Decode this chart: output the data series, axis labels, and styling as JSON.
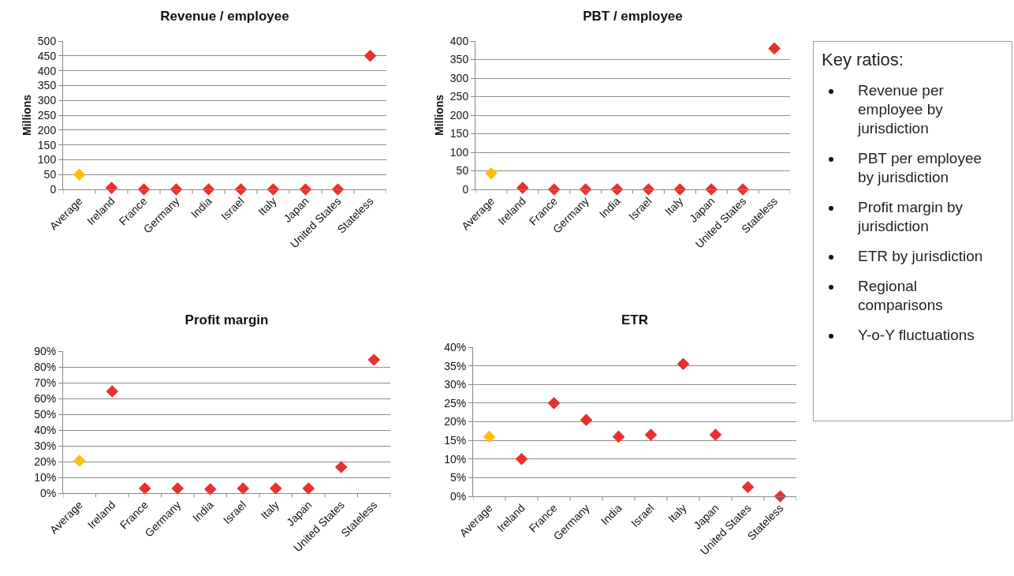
{
  "chart_data": [
    {
      "type": "scatter",
      "title": "Revenue / employee",
      "ylabel": "Millions",
      "categories": [
        "Average",
        "Ireland",
        "France",
        "Germany",
        "India",
        "Israel",
        "Italy",
        "Japan",
        "United States",
        "Stateless"
      ],
      "series": [
        {
          "colors": [
            "#ffc000",
            "#e8312f",
            "#e8312f",
            "#e8312f",
            "#e8312f",
            "#e8312f",
            "#e8312f",
            "#e8312f",
            "#e8312f",
            "#e8312f"
          ],
          "values": [
            50,
            5,
            0,
            0,
            0,
            0,
            0,
            0,
            0,
            450
          ]
        }
      ],
      "ylim": [
        0,
        500
      ],
      "yticks": [
        0,
        50,
        100,
        150,
        200,
        250,
        300,
        350,
        400,
        450,
        500
      ],
      "grid": "y",
      "marker": "diamond"
    },
    {
      "type": "scatter",
      "title": "PBT / employee",
      "ylabel": "Millions",
      "categories": [
        "Average",
        "Ireland",
        "France",
        "Germany",
        "India",
        "Israel",
        "Italy",
        "Japan",
        "United States",
        "Stateless"
      ],
      "series": [
        {
          "colors": [
            "#ffc000",
            "#e8312f",
            "#e8312f",
            "#e8312f",
            "#e8312f",
            "#e8312f",
            "#e8312f",
            "#e8312f",
            "#e8312f",
            "#e8312f"
          ],
          "values": [
            43,
            4,
            0,
            0,
            0,
            0,
            0,
            0,
            0,
            380
          ]
        }
      ],
      "ylim": [
        0,
        400
      ],
      "yticks": [
        0,
        50,
        100,
        150,
        200,
        250,
        300,
        350,
        400
      ],
      "grid": "y",
      "marker": "diamond"
    },
    {
      "type": "scatter",
      "title": "Profit margin",
      "categories": [
        "Average",
        "Ireland",
        "France",
        "Germany",
        "India",
        "Israel",
        "Italy",
        "Japan",
        "United States",
        "Stateless"
      ],
      "series": [
        {
          "colors": [
            "#ffc000",
            "#e8312f",
            "#e8312f",
            "#e8312f",
            "#e8312f",
            "#e8312f",
            "#e8312f",
            "#e8312f",
            "#e8312f",
            "#e8312f"
          ],
          "values": [
            20.5,
            64.5,
            3,
            3,
            2.5,
            3,
            3,
            3,
            16.5,
            84.5
          ]
        }
      ],
      "ylim": [
        0,
        90
      ],
      "yticks": [
        {
          "value": 0,
          "label": "0%"
        },
        {
          "value": 10,
          "label": "10%"
        },
        {
          "value": 20,
          "label": "20%"
        },
        {
          "value": 30,
          "label": "30%"
        },
        {
          "value": 40,
          "label": "40%"
        },
        {
          "value": 50,
          "label": "50%"
        },
        {
          "value": 60,
          "label": "60%"
        },
        {
          "value": 70,
          "label": "70%"
        },
        {
          "value": 80,
          "label": "80%"
        },
        {
          "value": 90,
          "label": "90%"
        }
      ],
      "grid": "y",
      "marker": "diamond"
    },
    {
      "type": "scatter",
      "title": "ETR",
      "categories": [
        "Average",
        "Ireland",
        "France",
        "Germany",
        "India",
        "Israel",
        "Italy",
        "Japan",
        "United States",
        "Stateless"
      ],
      "series": [
        {
          "colors": [
            "#ffc000",
            "#e8312f",
            "#e8312f",
            "#e8312f",
            "#e8312f",
            "#e8312f",
            "#e8312f",
            "#e8312f",
            "#e8312f",
            "#e8312f"
          ],
          "values": [
            16,
            10,
            25,
            20.5,
            16,
            16.5,
            35.5,
            16.5,
            2.5,
            0
          ]
        }
      ],
      "ylim": [
        0,
        40
      ],
      "yticks": [
        {
          "value": 0,
          "label": "0%"
        },
        {
          "value": 5,
          "label": "5%"
        },
        {
          "value": 10,
          "label": "10%"
        },
        {
          "value": 15,
          "label": "15%"
        },
        {
          "value": 20,
          "label": "20%"
        },
        {
          "value": 25,
          "label": "25%"
        },
        {
          "value": 30,
          "label": "30%"
        },
        {
          "value": 35,
          "label": "35%"
        },
        {
          "value": 40,
          "label": "40%"
        }
      ],
      "grid": "y",
      "marker": "diamond"
    },
    {
      "type": "other",
      "title": "Key ratios:",
      "annotations": [
        "Revenue per employee by jurisdiction",
        "PBT per employee by jurisdiction",
        "Profit margin by jurisdiction",
        "ETR by jurisdiction",
        "Regional comparisons",
        "Y-o-Y fluctuations"
      ]
    }
  ]
}
